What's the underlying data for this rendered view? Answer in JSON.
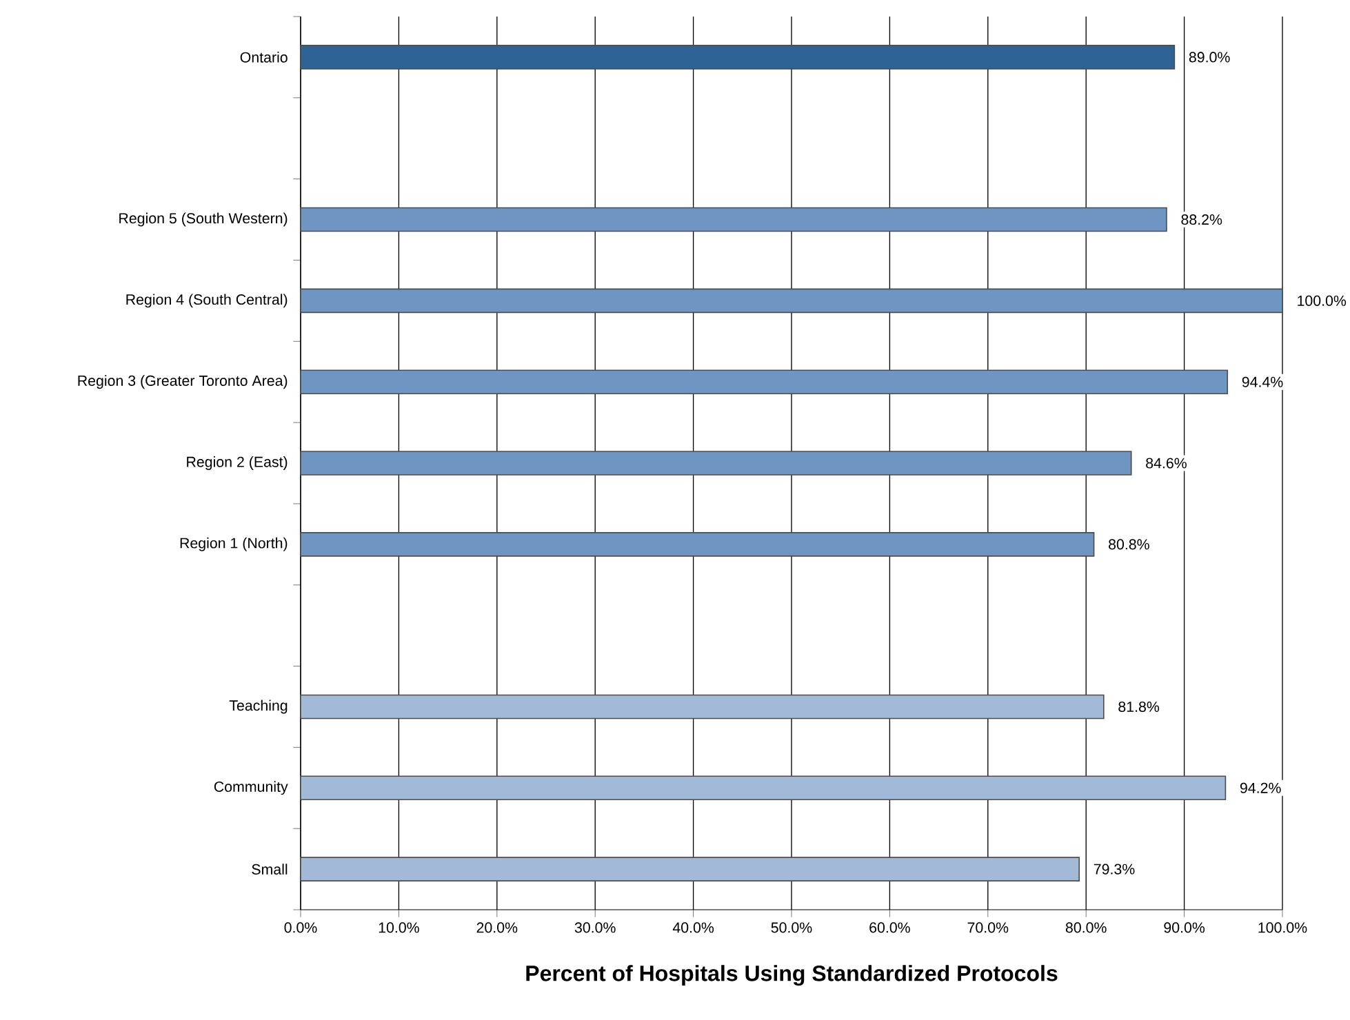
{
  "chart_data": {
    "type": "bar",
    "orientation": "horizontal",
    "xlabel": "Percent of Hospitals Using Standardized Protocols",
    "categories": [
      "Ontario",
      null,
      "Region 5 (South Western)",
      "Region 4 (South Central)",
      "Region 3 (Greater Toronto Area)",
      "Region 2 (East)",
      "Region 1 (North)",
      null,
      "Teaching",
      "Community",
      "Small"
    ],
    "values": [
      89.0,
      null,
      88.2,
      100.0,
      94.4,
      84.6,
      80.8,
      null,
      81.8,
      94.2,
      79.3
    ],
    "value_labels": [
      "89.0%",
      null,
      "88.2%",
      "100.0%",
      "94.4%",
      "84.6%",
      "80.8%",
      null,
      "81.8%",
      "94.2%",
      "79.3%"
    ],
    "colors": [
      "#2e6495",
      null,
      "#6f96c2",
      "#6f96c2",
      "#6f96c2",
      "#6f96c2",
      "#6f96c2",
      null,
      "#a3b9d8",
      "#a3b9d8",
      "#a3b9d8"
    ],
    "xlim": [
      0,
      100
    ],
    "xticks": [
      {
        "value": 0,
        "label": "0.0%"
      },
      {
        "value": 10,
        "label": "10.0%"
      },
      {
        "value": 20,
        "label": "20.0%"
      },
      {
        "value": 30,
        "label": "30.0%"
      },
      {
        "value": 40,
        "label": "40.0%"
      },
      {
        "value": 50,
        "label": "50.0%"
      },
      {
        "value": 60,
        "label": "60.0%"
      },
      {
        "value": 70,
        "label": "70.0%"
      },
      {
        "value": 80,
        "label": "80.0%"
      },
      {
        "value": 90,
        "label": "90.0%"
      },
      {
        "value": 100,
        "label": "100.0%"
      }
    ],
    "grid": "x"
  }
}
